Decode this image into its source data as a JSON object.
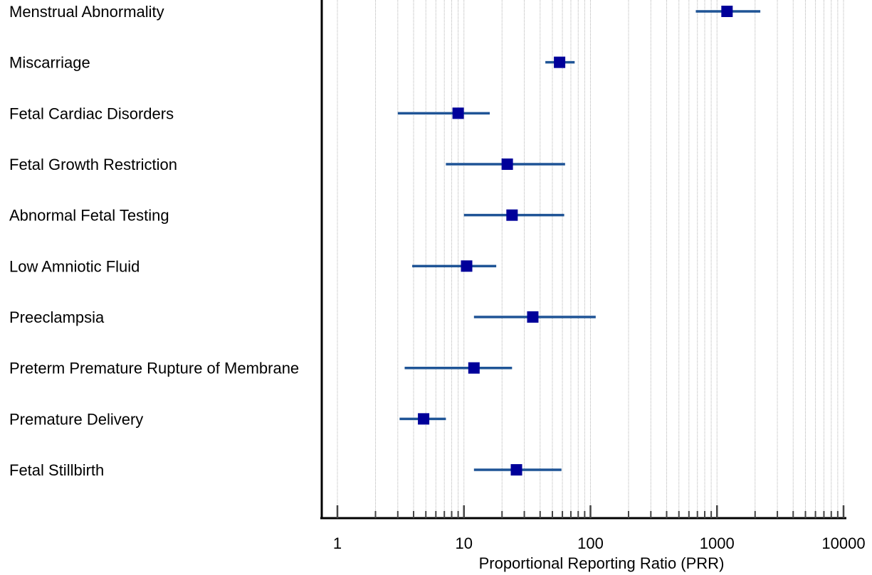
{
  "chart_data": {
    "type": "forest",
    "title": "",
    "xlabel": "Proportional Reporting Ratio (PRR)",
    "ylabel": "",
    "x_scale": "log",
    "xlim": [
      1,
      10000
    ],
    "x_ticks": [
      {
        "value": 1,
        "label": "1"
      },
      {
        "value": 10,
        "label": "10"
      },
      {
        "value": 100,
        "label": "100"
      },
      {
        "value": 1000,
        "label": "1000"
      },
      {
        "value": 10000,
        "label": "10000"
      }
    ],
    "grid": "vertical minor and major lines",
    "colors": {
      "marker": "#00009a",
      "ci_line": "#1f5496",
      "grid": "#b4b4b4",
      "axis": "#000000"
    },
    "categories": [
      "Menstrual Abnormality",
      "Miscarriage",
      "Fetal Cardiac Disorders",
      "Fetal Growth Restriction",
      "Abnormal Fetal Testing",
      "Low Amniotic Fluid",
      "Preeclampsia",
      "Preterm Premature Rupture of Membrane",
      "Premature Delivery",
      "Fetal Stillbirth"
    ],
    "series": [
      {
        "estimate": [
          1200,
          57,
          9,
          22,
          24,
          10.5,
          35,
          12,
          4.8,
          26
        ],
        "ci_low": [
          680,
          44,
          3,
          7.2,
          10,
          3.9,
          12,
          3.4,
          3.1,
          12
        ],
        "ci_high": [
          2200,
          75,
          16,
          63,
          62,
          18,
          110,
          24,
          7.2,
          59
        ]
      }
    ]
  }
}
